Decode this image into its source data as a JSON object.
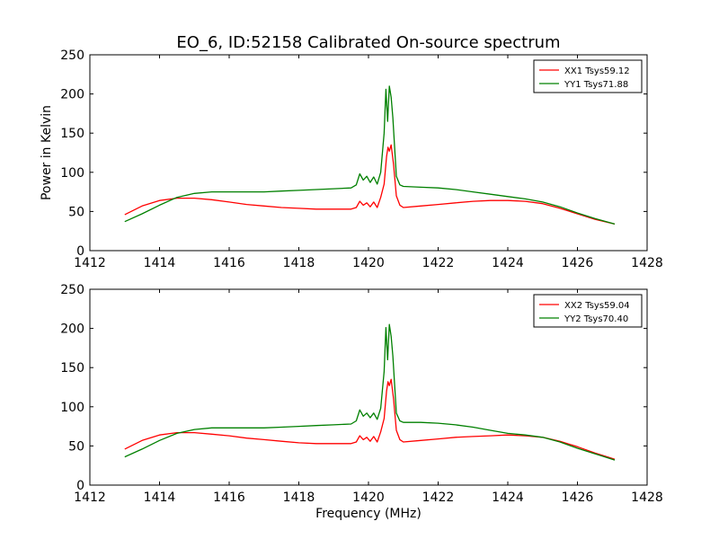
{
  "chart_data": [
    {
      "type": "line",
      "title": "EO_6, ID:52158 Calibrated On-source spectrum",
      "xlabel": "",
      "ylabel": "Power in Kelvin",
      "xlim": [
        1412,
        1428
      ],
      "ylim": [
        0,
        250
      ],
      "xticks": [
        1412,
        1414,
        1416,
        1418,
        1420,
        1422,
        1424,
        1426,
        1428
      ],
      "yticks": [
        0,
        50,
        100,
        150,
        200,
        250
      ],
      "grid": false,
      "legend": "top-right",
      "series": [
        {
          "name": "XX1 Tsys59.12",
          "color": "#ff0000",
          "x": [
            1413.0,
            1413.5,
            1414.0,
            1414.5,
            1415.0,
            1415.5,
            1416.0,
            1416.5,
            1417.0,
            1417.5,
            1418.0,
            1418.5,
            1419.0,
            1419.5,
            1419.65,
            1419.75,
            1419.85,
            1419.95,
            1420.05,
            1420.15,
            1420.25,
            1420.35,
            1420.45,
            1420.52,
            1420.56,
            1420.6,
            1420.65,
            1420.72,
            1420.8,
            1420.9,
            1421.0,
            1421.5,
            1422.0,
            1422.5,
            1423.0,
            1423.5,
            1424.0,
            1424.5,
            1425.0,
            1425.5,
            1426.0,
            1426.5,
            1427.07
          ],
          "y": [
            46,
            57,
            64,
            67,
            67,
            65,
            62,
            59,
            57,
            55,
            54,
            53,
            53,
            53,
            55,
            63,
            58,
            61,
            56,
            62,
            55,
            68,
            85,
            120,
            132,
            127,
            135,
            110,
            70,
            58,
            55,
            57,
            59,
            61,
            63,
            64,
            64,
            63,
            60,
            54,
            47,
            40,
            34
          ]
        },
        {
          "name": "YY1 Tsys71.88",
          "color": "#008000",
          "x": [
            1413.0,
            1413.5,
            1414.0,
            1414.5,
            1415.0,
            1415.5,
            1416.0,
            1416.5,
            1417.0,
            1417.5,
            1418.0,
            1418.5,
            1419.0,
            1419.5,
            1419.65,
            1419.75,
            1419.85,
            1419.95,
            1420.05,
            1420.15,
            1420.25,
            1420.35,
            1420.45,
            1420.5,
            1420.55,
            1420.6,
            1420.65,
            1420.7,
            1420.8,
            1420.9,
            1421.0,
            1421.5,
            1422.0,
            1422.5,
            1423.0,
            1423.5,
            1424.0,
            1424.5,
            1425.0,
            1425.5,
            1426.0,
            1426.5,
            1427.07
          ],
          "y": [
            37,
            47,
            58,
            68,
            73,
            75,
            75,
            75,
            75,
            76,
            77,
            78,
            79,
            80,
            84,
            98,
            90,
            95,
            87,
            94,
            85,
            100,
            150,
            206,
            165,
            210,
            196,
            170,
            95,
            84,
            82,
            81,
            80,
            78,
            75,
            72,
            69,
            66,
            62,
            56,
            48,
            41,
            34
          ]
        }
      ]
    },
    {
      "type": "line",
      "title": "",
      "xlabel": "Frequency (MHz)",
      "ylabel": "",
      "xlim": [
        1412,
        1428
      ],
      "ylim": [
        0,
        250
      ],
      "xticks": [
        1412,
        1414,
        1416,
        1418,
        1420,
        1422,
        1424,
        1426,
        1428
      ],
      "yticks": [
        0,
        50,
        100,
        150,
        200,
        250
      ],
      "grid": false,
      "legend": "top-right",
      "series": [
        {
          "name": "XX2 Tsys59.04",
          "color": "#ff0000",
          "x": [
            1413.0,
            1413.5,
            1414.0,
            1414.5,
            1415.0,
            1415.5,
            1416.0,
            1416.5,
            1417.0,
            1417.5,
            1418.0,
            1418.5,
            1419.0,
            1419.5,
            1419.65,
            1419.75,
            1419.85,
            1419.95,
            1420.05,
            1420.15,
            1420.25,
            1420.35,
            1420.45,
            1420.52,
            1420.56,
            1420.6,
            1420.65,
            1420.72,
            1420.8,
            1420.9,
            1421.0,
            1421.5,
            1422.0,
            1422.5,
            1423.0,
            1423.5,
            1424.0,
            1424.5,
            1425.0,
            1425.5,
            1426.0,
            1426.5,
            1427.07
          ],
          "y": [
            46,
            57,
            64,
            67,
            67,
            65,
            63,
            60,
            58,
            56,
            54,
            53,
            53,
            53,
            55,
            63,
            58,
            61,
            56,
            62,
            55,
            68,
            85,
            120,
            132,
            127,
            135,
            110,
            70,
            58,
            55,
            57,
            59,
            61,
            62,
            63,
            64,
            63,
            61,
            56,
            49,
            41,
            33
          ]
        },
        {
          "name": "YY2 Tsys70.40",
          "color": "#008000",
          "x": [
            1413.0,
            1413.5,
            1414.0,
            1414.5,
            1415.0,
            1415.5,
            1416.0,
            1416.5,
            1417.0,
            1417.5,
            1418.0,
            1418.5,
            1419.0,
            1419.5,
            1419.65,
            1419.75,
            1419.85,
            1419.95,
            1420.05,
            1420.15,
            1420.25,
            1420.35,
            1420.45,
            1420.5,
            1420.55,
            1420.6,
            1420.65,
            1420.7,
            1420.8,
            1420.9,
            1421.0,
            1421.5,
            1422.0,
            1422.5,
            1423.0,
            1423.5,
            1424.0,
            1424.5,
            1425.0,
            1425.5,
            1426.0,
            1426.5,
            1427.07
          ],
          "y": [
            36,
            46,
            57,
            66,
            71,
            73,
            73,
            73,
            73,
            74,
            75,
            76,
            77,
            78,
            82,
            96,
            88,
            92,
            86,
            92,
            84,
            98,
            145,
            201,
            160,
            205,
            190,
            165,
            92,
            82,
            80,
            80,
            79,
            77,
            74,
            70,
            66,
            64,
            61,
            55,
            47,
            40,
            32
          ]
        }
      ]
    }
  ]
}
